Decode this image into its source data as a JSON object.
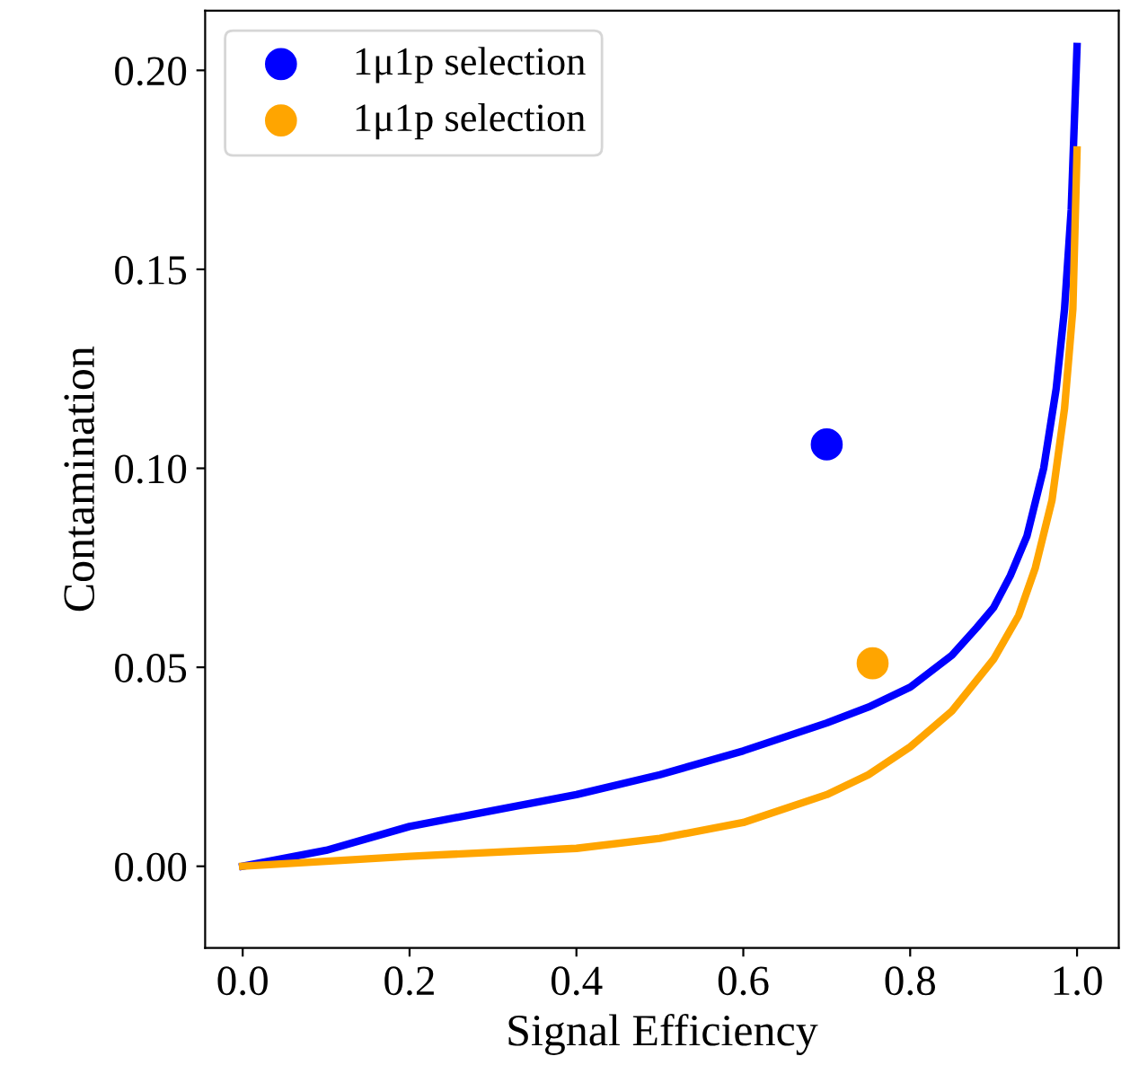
{
  "chart_data": {
    "type": "line",
    "xlabel": "Signal Efficiency",
    "ylabel": "Contamination",
    "xlim": [
      -0.045,
      1.05
    ],
    "ylim": [
      -0.0205,
      0.215
    ],
    "xticks": [
      {
        "value": 0,
        "label": "0.0"
      },
      {
        "value": 0.2,
        "label": "0.2"
      },
      {
        "value": 0.4,
        "label": "0.4"
      },
      {
        "value": 0.6,
        "label": "0.6"
      },
      {
        "value": 0.8,
        "label": "0.8"
      },
      {
        "value": 1,
        "label": "1.0"
      }
    ],
    "yticks": [
      {
        "value": 0,
        "label": "0.00"
      },
      {
        "value": 0.05,
        "label": "0.05"
      },
      {
        "value": 0.1,
        "label": "0.10"
      },
      {
        "value": 0.15,
        "label": "0.15"
      },
      {
        "value": 0.2,
        "label": "0.20"
      }
    ],
    "grid": false,
    "legend": "top left",
    "series": [
      {
        "color": "#0000ff",
        "x": [
          0,
          0.1,
          0.2,
          0.3,
          0.4,
          0.5,
          0.6,
          0.7,
          0.75,
          0.8,
          0.85,
          0.88,
          0.9,
          0.92,
          0.94,
          0.96,
          0.975,
          0.985,
          0.993,
          1.0
        ],
        "values": [
          0,
          0.004,
          0.01,
          0.014,
          0.018,
          0.023,
          0.029,
          0.036,
          0.04,
          0.045,
          0.053,
          0.06,
          0.065,
          0.073,
          0.083,
          0.1,
          0.12,
          0.14,
          0.165,
          0.206
        ]
      },
      {
        "color": "#ffa500",
        "x": [
          0,
          0.2,
          0.4,
          0.5,
          0.6,
          0.7,
          0.75,
          0.8,
          0.85,
          0.9,
          0.93,
          0.95,
          0.97,
          0.985,
          0.995,
          1.0
        ],
        "values": [
          0,
          0.0025,
          0.0045,
          0.007,
          0.011,
          0.018,
          0.023,
          0.03,
          0.039,
          0.052,
          0.063,
          0.075,
          0.092,
          0.115,
          0.14,
          0.18
        ]
      },
      {
        "type": "scatter",
        "name": "1μ1p selection",
        "color": "#0000ff",
        "marker": "circle",
        "x": [
          0.7
        ],
        "values": [
          0.106
        ]
      },
      {
        "type": "scatter",
        "name": "1μ1p selection",
        "color": "#ffa500",
        "marker": "circle",
        "x": [
          0.755
        ],
        "values": [
          0.051
        ]
      }
    ]
  }
}
